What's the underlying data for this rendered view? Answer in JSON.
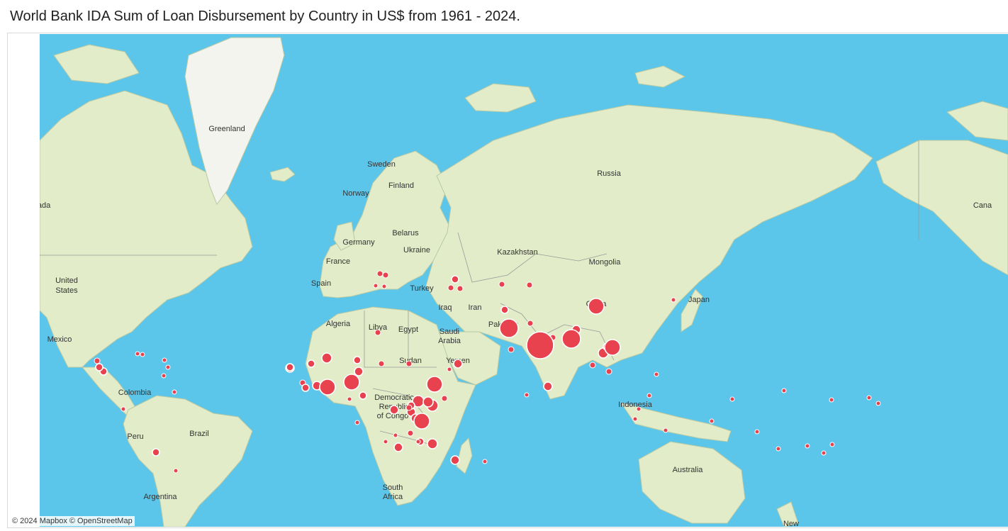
{
  "title": "World Bank IDA Sum of Loan Disbursement by Country in US$ from 1961 - 2024.",
  "attribution": "© 2024 Mapbox  © OpenStreetMap",
  "colors": {
    "ocean": "#5bc6ea",
    "land": "#e2ecc8",
    "ice": "#f4f4ee",
    "border": "#9a9a9a",
    "bubble": "#e8424f",
    "bubble_stroke": "#ffffff"
  },
  "map_labels": [
    {
      "id": "greenland",
      "text": "Greenland"
    },
    {
      "id": "sweden",
      "text": "Sweden"
    },
    {
      "id": "norway",
      "text": "Norway"
    },
    {
      "id": "finland",
      "text": "Finland"
    },
    {
      "id": "russia",
      "text": "Russia"
    },
    {
      "id": "belarus",
      "text": "Belarus"
    },
    {
      "id": "germany",
      "text": "Germany"
    },
    {
      "id": "ukraine",
      "text": "Ukraine"
    },
    {
      "id": "france",
      "text": "France"
    },
    {
      "id": "kazakhstan",
      "text": "Kazakhstan"
    },
    {
      "id": "mongolia",
      "text": "Mongolia"
    },
    {
      "id": "spain",
      "text": "Spain"
    },
    {
      "id": "turkey",
      "text": "Turkey"
    },
    {
      "id": "united_states_1",
      "text": "United"
    },
    {
      "id": "united_states_2",
      "text": "States"
    },
    {
      "id": "iraq",
      "text": "Iraq"
    },
    {
      "id": "iran",
      "text": "Iran"
    },
    {
      "id": "china",
      "text": "China"
    },
    {
      "id": "japan",
      "text": "Japan"
    },
    {
      "id": "algeria",
      "text": "Algeria"
    },
    {
      "id": "libya",
      "text": "Libya"
    },
    {
      "id": "egypt",
      "text": "Egypt"
    },
    {
      "id": "pakistan",
      "text": "Pakistan"
    },
    {
      "id": "saudi_1",
      "text": "Saudi"
    },
    {
      "id": "saudi_2",
      "text": "Arabia"
    },
    {
      "id": "mexico",
      "text": "Mexico"
    },
    {
      "id": "sudan",
      "text": "Sudan"
    },
    {
      "id": "yemen",
      "text": "Yemen"
    },
    {
      "id": "colombia",
      "text": "Colombia"
    },
    {
      "id": "drc_1",
      "text": "Democratic"
    },
    {
      "id": "drc_2",
      "text": "Republic"
    },
    {
      "id": "drc_3",
      "text": "of Congo"
    },
    {
      "id": "indonesia",
      "text": "Indonesia"
    },
    {
      "id": "brazil",
      "text": "Brazil"
    },
    {
      "id": "peru",
      "text": "Peru"
    },
    {
      "id": "australia",
      "text": "Australia"
    },
    {
      "id": "argentina",
      "text": "Argentina"
    },
    {
      "id": "south_africa_1",
      "text": "South"
    },
    {
      "id": "south_africa_2",
      "text": "Africa"
    },
    {
      "id": "canada_left",
      "text": "ada"
    },
    {
      "id": "canada_right",
      "text": "Cana"
    },
    {
      "id": "new_zealand",
      "text": "New"
    }
  ],
  "bubbles": [
    {
      "country": "India",
      "size": "xl"
    },
    {
      "country": "Bangladesh",
      "size": "l"
    },
    {
      "country": "Pakistan",
      "size": "l"
    },
    {
      "country": "Ethiopia",
      "size": "m"
    },
    {
      "country": "Vietnam",
      "size": "m"
    },
    {
      "country": "China",
      "size": "m"
    },
    {
      "country": "Nigeria",
      "size": "m"
    },
    {
      "country": "Tanzania",
      "size": "m"
    },
    {
      "country": "Ghana",
      "size": "m"
    }
  ]
}
